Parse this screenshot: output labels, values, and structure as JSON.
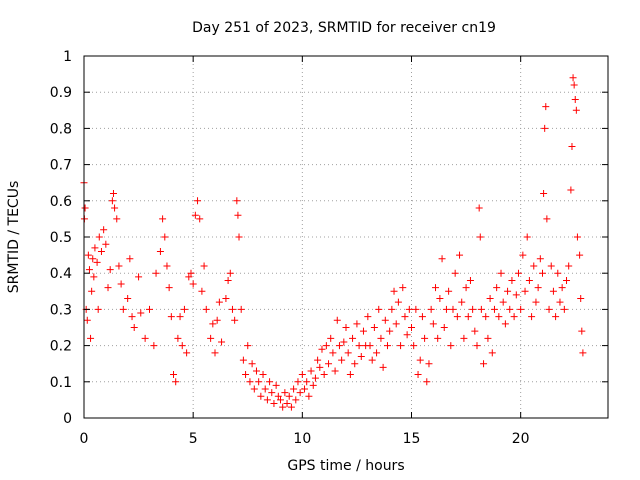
{
  "chart_data": {
    "type": "scatter",
    "title": "Day 251 of 2023, SRMTID for receiver cn19",
    "xlabel": "GPS time / hours",
    "ylabel": "SRMTID / TECUs",
    "xlim": [
      0,
      24
    ],
    "ylim": [
      0,
      1
    ],
    "grid": true,
    "marker": "+",
    "color": "#ff0000",
    "xticks": [
      0,
      5,
      10,
      15,
      20
    ],
    "xtick_labels": [
      "0",
      "5",
      "10",
      "15",
      "20"
    ],
    "yticks": [
      0,
      0.1,
      0.2,
      0.3,
      0.4,
      0.5,
      0.6,
      0.7,
      0.8,
      0.9,
      1
    ],
    "ytick_labels": [
      "0",
      "0.1",
      "0.2",
      "0.3",
      "0.4",
      "0.5",
      "0.6",
      "0.7",
      "0.8",
      "0.9",
      "1"
    ],
    "series": [
      {
        "name": "SRMTID",
        "points": [
          [
            0.0,
            0.65
          ],
          [
            0.02,
            0.55
          ],
          [
            0.05,
            0.58
          ],
          [
            0.1,
            0.3
          ],
          [
            0.15,
            0.27
          ],
          [
            0.2,
            0.45
          ],
          [
            0.25,
            0.41
          ],
          [
            0.3,
            0.22
          ],
          [
            0.35,
            0.35
          ],
          [
            0.4,
            0.44
          ],
          [
            0.45,
            0.39
          ],
          [
            0.5,
            0.47
          ],
          [
            0.6,
            0.43
          ],
          [
            0.65,
            0.3
          ],
          [
            0.7,
            0.5
          ],
          [
            0.8,
            0.46
          ],
          [
            0.9,
            0.52
          ],
          [
            1.0,
            0.48
          ],
          [
            1.1,
            0.36
          ],
          [
            1.2,
            0.41
          ],
          [
            1.3,
            0.6
          ],
          [
            1.35,
            0.62
          ],
          [
            1.4,
            0.58
          ],
          [
            1.5,
            0.55
          ],
          [
            1.6,
            0.42
          ],
          [
            1.7,
            0.37
          ],
          [
            1.8,
            0.3
          ],
          [
            2.0,
            0.33
          ],
          [
            2.1,
            0.44
          ],
          [
            2.2,
            0.28
          ],
          [
            2.3,
            0.25
          ],
          [
            2.5,
            0.39
          ],
          [
            2.6,
            0.29
          ],
          [
            2.8,
            0.22
          ],
          [
            3.0,
            0.3
          ],
          [
            3.2,
            0.2
          ],
          [
            3.3,
            0.4
          ],
          [
            3.5,
            0.46
          ],
          [
            3.6,
            0.55
          ],
          [
            3.7,
            0.5
          ],
          [
            3.8,
            0.42
          ],
          [
            3.9,
            0.36
          ],
          [
            4.0,
            0.28
          ],
          [
            4.1,
            0.12
          ],
          [
            4.2,
            0.1
          ],
          [
            4.3,
            0.22
          ],
          [
            4.4,
            0.28
          ],
          [
            4.5,
            0.2
          ],
          [
            4.6,
            0.3
          ],
          [
            4.7,
            0.18
          ],
          [
            4.8,
            0.39
          ],
          [
            4.9,
            0.4
          ],
          [
            5.0,
            0.37
          ],
          [
            5.1,
            0.56
          ],
          [
            5.2,
            0.6
          ],
          [
            5.3,
            0.55
          ],
          [
            5.4,
            0.35
          ],
          [
            5.5,
            0.42
          ],
          [
            5.6,
            0.3
          ],
          [
            5.8,
            0.22
          ],
          [
            5.9,
            0.26
          ],
          [
            6.0,
            0.18
          ],
          [
            6.1,
            0.27
          ],
          [
            6.2,
            0.32
          ],
          [
            6.3,
            0.21
          ],
          [
            6.5,
            0.33
          ],
          [
            6.6,
            0.38
          ],
          [
            6.7,
            0.4
          ],
          [
            6.8,
            0.3
          ],
          [
            6.9,
            0.27
          ],
          [
            7.0,
            0.6
          ],
          [
            7.05,
            0.56
          ],
          [
            7.1,
            0.5
          ],
          [
            7.2,
            0.3
          ],
          [
            7.3,
            0.16
          ],
          [
            7.4,
            0.12
          ],
          [
            7.5,
            0.2
          ],
          [
            7.6,
            0.1
          ],
          [
            7.7,
            0.15
          ],
          [
            7.8,
            0.08
          ],
          [
            7.9,
            0.13
          ],
          [
            8.0,
            0.1
          ],
          [
            8.1,
            0.06
          ],
          [
            8.2,
            0.12
          ],
          [
            8.3,
            0.08
          ],
          [
            8.4,
            0.05
          ],
          [
            8.5,
            0.1
          ],
          [
            8.6,
            0.07
          ],
          [
            8.7,
            0.04
          ],
          [
            8.8,
            0.09
          ],
          [
            8.9,
            0.06
          ],
          [
            9.0,
            0.05
          ],
          [
            9.1,
            0.03
          ],
          [
            9.2,
            0.07
          ],
          [
            9.3,
            0.04
          ],
          [
            9.4,
            0.06
          ],
          [
            9.5,
            0.03
          ],
          [
            9.6,
            0.08
          ],
          [
            9.7,
            0.05
          ],
          [
            9.8,
            0.1
          ],
          [
            9.9,
            0.07
          ],
          [
            10.0,
            0.12
          ],
          [
            10.1,
            0.08
          ],
          [
            10.2,
            0.1
          ],
          [
            10.3,
            0.06
          ],
          [
            10.4,
            0.13
          ],
          [
            10.5,
            0.09
          ],
          [
            10.6,
            0.11
          ],
          [
            10.7,
            0.16
          ],
          [
            10.8,
            0.14
          ],
          [
            10.9,
            0.19
          ],
          [
            11.0,
            0.12
          ],
          [
            11.1,
            0.2
          ],
          [
            11.2,
            0.15
          ],
          [
            11.3,
            0.22
          ],
          [
            11.4,
            0.18
          ],
          [
            11.5,
            0.13
          ],
          [
            11.6,
            0.27
          ],
          [
            11.7,
            0.2
          ],
          [
            11.8,
            0.16
          ],
          [
            11.9,
            0.21
          ],
          [
            12.0,
            0.25
          ],
          [
            12.1,
            0.18
          ],
          [
            12.2,
            0.12
          ],
          [
            12.3,
            0.22
          ],
          [
            12.4,
            0.15
          ],
          [
            12.5,
            0.26
          ],
          [
            12.6,
            0.2
          ],
          [
            12.7,
            0.17
          ],
          [
            12.8,
            0.24
          ],
          [
            12.9,
            0.2
          ],
          [
            13.0,
            0.28
          ],
          [
            13.1,
            0.2
          ],
          [
            13.2,
            0.16
          ],
          [
            13.3,
            0.25
          ],
          [
            13.4,
            0.18
          ],
          [
            13.5,
            0.3
          ],
          [
            13.6,
            0.22
          ],
          [
            13.7,
            0.14
          ],
          [
            13.8,
            0.27
          ],
          [
            13.9,
            0.2
          ],
          [
            14.0,
            0.24
          ],
          [
            14.1,
            0.3
          ],
          [
            14.2,
            0.35
          ],
          [
            14.3,
            0.26
          ],
          [
            14.4,
            0.32
          ],
          [
            14.5,
            0.2
          ],
          [
            14.6,
            0.36
          ],
          [
            14.7,
            0.28
          ],
          [
            14.8,
            0.23
          ],
          [
            14.9,
            0.3
          ],
          [
            15.0,
            0.25
          ],
          [
            15.1,
            0.2
          ],
          [
            15.2,
            0.3
          ],
          [
            15.3,
            0.12
          ],
          [
            15.4,
            0.16
          ],
          [
            15.5,
            0.28
          ],
          [
            15.6,
            0.22
          ],
          [
            15.7,
            0.1
          ],
          [
            15.8,
            0.15
          ],
          [
            15.9,
            0.3
          ],
          [
            16.0,
            0.26
          ],
          [
            16.1,
            0.36
          ],
          [
            16.2,
            0.22
          ],
          [
            16.3,
            0.33
          ],
          [
            16.4,
            0.44
          ],
          [
            16.5,
            0.25
          ],
          [
            16.6,
            0.3
          ],
          [
            16.7,
            0.35
          ],
          [
            16.8,
            0.2
          ],
          [
            16.9,
            0.3
          ],
          [
            17.0,
            0.4
          ],
          [
            17.1,
            0.28
          ],
          [
            17.2,
            0.45
          ],
          [
            17.3,
            0.32
          ],
          [
            17.4,
            0.22
          ],
          [
            17.5,
            0.36
          ],
          [
            17.6,
            0.28
          ],
          [
            17.7,
            0.38
          ],
          [
            17.8,
            0.3
          ],
          [
            17.9,
            0.24
          ],
          [
            18.0,
            0.2
          ],
          [
            18.1,
            0.58
          ],
          [
            18.15,
            0.5
          ],
          [
            18.2,
            0.3
          ],
          [
            18.3,
            0.15
          ],
          [
            18.4,
            0.28
          ],
          [
            18.5,
            0.22
          ],
          [
            18.6,
            0.33
          ],
          [
            18.7,
            0.18
          ],
          [
            18.8,
            0.3
          ],
          [
            18.9,
            0.36
          ],
          [
            19.0,
            0.28
          ],
          [
            19.1,
            0.4
          ],
          [
            19.2,
            0.32
          ],
          [
            19.3,
            0.26
          ],
          [
            19.4,
            0.35
          ],
          [
            19.5,
            0.3
          ],
          [
            19.6,
            0.38
          ],
          [
            19.7,
            0.28
          ],
          [
            19.8,
            0.34
          ],
          [
            19.9,
            0.4
          ],
          [
            20.0,
            0.3
          ],
          [
            20.1,
            0.45
          ],
          [
            20.2,
            0.35
          ],
          [
            20.3,
            0.5
          ],
          [
            20.4,
            0.38
          ],
          [
            20.5,
            0.28
          ],
          [
            20.6,
            0.42
          ],
          [
            20.7,
            0.32
          ],
          [
            20.8,
            0.36
          ],
          [
            20.9,
            0.44
          ],
          [
            21.0,
            0.4
          ],
          [
            21.05,
            0.62
          ],
          [
            21.1,
            0.8
          ],
          [
            21.15,
            0.86
          ],
          [
            21.2,
            0.55
          ],
          [
            21.3,
            0.3
          ],
          [
            21.4,
            0.42
          ],
          [
            21.5,
            0.35
          ],
          [
            21.6,
            0.28
          ],
          [
            21.7,
            0.4
          ],
          [
            21.8,
            0.32
          ],
          [
            21.9,
            0.36
          ],
          [
            22.0,
            0.3
          ],
          [
            22.1,
            0.38
          ],
          [
            22.2,
            0.42
          ],
          [
            22.3,
            0.63
          ],
          [
            22.35,
            0.75
          ],
          [
            22.4,
            0.94
          ],
          [
            22.45,
            0.92
          ],
          [
            22.5,
            0.88
          ],
          [
            22.55,
            0.85
          ],
          [
            22.6,
            0.5
          ],
          [
            22.7,
            0.45
          ],
          [
            22.75,
            0.33
          ],
          [
            22.8,
            0.24
          ],
          [
            22.85,
            0.18
          ]
        ]
      }
    ]
  }
}
